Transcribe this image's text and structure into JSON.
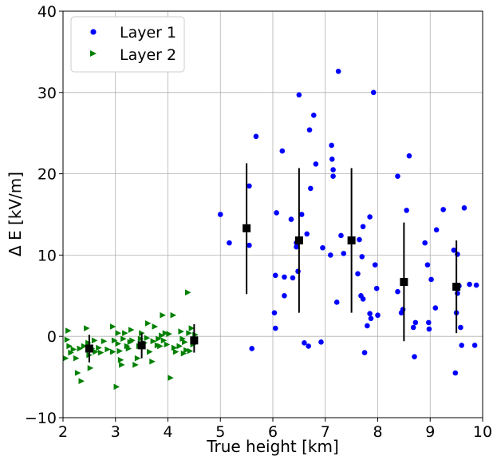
{
  "chart_data": {
    "type": "scatter",
    "title": "",
    "xlabel": "True height [km]",
    "ylabel": "Δ E [kV/m]",
    "xlim": [
      2,
      10
    ],
    "ylim": [
      -10,
      40
    ],
    "xticks": [
      2,
      3,
      4,
      5,
      6,
      7,
      8,
      9,
      10
    ],
    "yticks": [
      -10,
      0,
      10,
      20,
      30,
      40
    ],
    "xtick_labels": [
      "2",
      "3",
      "4",
      "5",
      "6",
      "7",
      "8",
      "9",
      "10"
    ],
    "ytick_labels": [
      "−10",
      "0",
      "10",
      "20",
      "30",
      "40"
    ],
    "grid": true,
    "legend_position": "top-left",
    "series": [
      {
        "name": "Layer 1",
        "marker": "circle",
        "color": "#0000ff",
        "points": [
          [
            5.0,
            15.0
          ],
          [
            5.17,
            11.5
          ],
          [
            5.55,
            18.5
          ],
          [
            5.55,
            11.2
          ],
          [
            5.6,
            -1.5
          ],
          [
            5.68,
            24.6
          ],
          [
            6.03,
            2.9
          ],
          [
            6.05,
            1.0
          ],
          [
            6.05,
            7.5
          ],
          [
            6.07,
            15.2
          ],
          [
            6.18,
            22.8
          ],
          [
            6.22,
            5.0
          ],
          [
            6.22,
            7.3
          ],
          [
            6.35,
            14.4
          ],
          [
            6.38,
            7.2
          ],
          [
            6.45,
            11.5
          ],
          [
            6.45,
            11.0
          ],
          [
            6.48,
            8.0
          ],
          [
            6.5,
            29.7
          ],
          [
            6.55,
            15.0
          ],
          [
            6.6,
            -0.8
          ],
          [
            6.65,
            12.6
          ],
          [
            6.68,
            -1.2
          ],
          [
            6.7,
            25.4
          ],
          [
            6.72,
            18.2
          ],
          [
            6.78,
            27.2
          ],
          [
            6.82,
            21.2
          ],
          [
            6.92,
            -0.7
          ],
          [
            6.95,
            10.9
          ],
          [
            7.1,
            10.0
          ],
          [
            7.12,
            23.5
          ],
          [
            7.13,
            21.8
          ],
          [
            7.15,
            20.5
          ],
          [
            7.15,
            19.7
          ],
          [
            7.22,
            4.2
          ],
          [
            7.25,
            32.6
          ],
          [
            7.3,
            12.4
          ],
          [
            7.35,
            10.2
          ],
          [
            7.62,
            7.7
          ],
          [
            7.65,
            11.9
          ],
          [
            7.68,
            5.0
          ],
          [
            7.7,
            9.8
          ],
          [
            7.72,
            4.6
          ],
          [
            7.72,
            13.5
          ],
          [
            7.75,
            -2.0
          ],
          [
            7.8,
            1.3
          ],
          [
            7.85,
            2.8
          ],
          [
            7.85,
            14.7
          ],
          [
            7.87,
            2.2
          ],
          [
            7.92,
            30.0
          ],
          [
            7.95,
            8.8
          ],
          [
            7.98,
            5.9
          ],
          [
            8.0,
            2.6
          ],
          [
            8.38,
            19.7
          ],
          [
            8.38,
            5.5
          ],
          [
            8.45,
            2.9
          ],
          [
            8.48,
            3.3
          ],
          [
            8.55,
            15.5
          ],
          [
            8.6,
            22.2
          ],
          [
            8.68,
            1.1
          ],
          [
            8.7,
            -2.5
          ],
          [
            8.72,
            1.7
          ],
          [
            8.9,
            11.5
          ],
          [
            8.95,
            8.8
          ],
          [
            8.97,
            1.7
          ],
          [
            8.98,
            0.9
          ],
          [
            9.02,
            7.0
          ],
          [
            9.1,
            3.5
          ],
          [
            9.12,
            13.1
          ],
          [
            9.25,
            15.6
          ],
          [
            9.45,
            10.6
          ],
          [
            9.48,
            -4.5
          ],
          [
            9.5,
            2.9
          ],
          [
            9.52,
            10.1
          ],
          [
            9.52,
            5.3
          ],
          [
            9.55,
            6.2
          ],
          [
            9.58,
            1.1
          ],
          [
            9.6,
            -1.1
          ],
          [
            9.65,
            15.8
          ],
          [
            9.75,
            6.4
          ],
          [
            9.85,
            -1.1
          ],
          [
            9.88,
            6.3
          ]
        ]
      },
      {
        "name": "Layer 2",
        "marker": "triangle-right",
        "color": "#008000",
        "points": [
          [
            2.05,
            -2.7
          ],
          [
            2.08,
            -0.4
          ],
          [
            2.1,
            0.7
          ],
          [
            2.12,
            -1.2
          ],
          [
            2.15,
            -2.0
          ],
          [
            2.2,
            -1.6
          ],
          [
            2.25,
            -2.7
          ],
          [
            2.28,
            -4.5
          ],
          [
            2.32,
            -1.5
          ],
          [
            2.35,
            -5.5
          ],
          [
            2.4,
            -1.2
          ],
          [
            2.45,
            1.0
          ],
          [
            2.48,
            -0.8
          ],
          [
            2.5,
            -2.3
          ],
          [
            2.52,
            -3.9
          ],
          [
            2.55,
            -1.5
          ],
          [
            2.6,
            -0.5
          ],
          [
            2.62,
            -1.9
          ],
          [
            2.68,
            -1.4
          ],
          [
            2.72,
            -2.0
          ],
          [
            2.78,
            -0.6
          ],
          [
            2.85,
            -1.6
          ],
          [
            2.95,
            -1.9
          ],
          [
            2.95,
            1.2
          ],
          [
            2.98,
            -0.5
          ],
          [
            3.02,
            -6.2
          ],
          [
            3.05,
            0.4
          ],
          [
            3.05,
            -0.9
          ],
          [
            3.08,
            -1.8
          ],
          [
            3.1,
            -2.9
          ],
          [
            3.12,
            -3.5
          ],
          [
            3.15,
            -0.3
          ],
          [
            3.18,
            0.4
          ],
          [
            3.22,
            -1.2
          ],
          [
            3.25,
            -1.5
          ],
          [
            3.28,
            -0.7
          ],
          [
            3.3,
            0.8
          ],
          [
            3.32,
            -0.5
          ],
          [
            3.38,
            -3.5
          ],
          [
            3.42,
            -2.7
          ],
          [
            3.45,
            -1.2
          ],
          [
            3.48,
            -0.3
          ],
          [
            3.5,
            0.4
          ],
          [
            3.55,
            -0.8
          ],
          [
            3.6,
            -0.2
          ],
          [
            3.62,
            1.6
          ],
          [
            3.65,
            -1.9
          ],
          [
            3.7,
            -3.1
          ],
          [
            3.72,
            -0.6
          ],
          [
            3.75,
            1.2
          ],
          [
            3.8,
            -1.1
          ],
          [
            3.82,
            -0.3
          ],
          [
            3.85,
            -1.2
          ],
          [
            3.88,
            0.1
          ],
          [
            3.9,
            2.6
          ],
          [
            3.92,
            -0.5
          ],
          [
            3.95,
            0.4
          ],
          [
            3.98,
            -1.0
          ],
          [
            4.02,
            0.3
          ],
          [
            4.05,
            -5.1
          ],
          [
            4.1,
            2.6
          ],
          [
            4.12,
            -1.4
          ],
          [
            4.15,
            -1.9
          ],
          [
            4.22,
            -1.2
          ],
          [
            4.25,
            0.6
          ],
          [
            4.28,
            -0.3
          ],
          [
            4.3,
            -2.1
          ],
          [
            4.32,
            -0.7
          ],
          [
            4.35,
            -1.7
          ],
          [
            4.38,
            5.4
          ],
          [
            4.4,
            0.4
          ],
          [
            4.42,
            -1.8
          ],
          [
            4.45,
            1.0
          ],
          [
            4.48,
            -1.0
          ],
          [
            4.5,
            -0.4
          ],
          [
            4.52,
            0.2
          ]
        ]
      },
      {
        "marker": "square",
        "color": "#000000",
        "points": [
          [
            2.5,
            -1.5
          ],
          [
            3.5,
            -1.1
          ],
          [
            4.5,
            -0.5
          ],
          [
            5.5,
            13.3
          ],
          [
            6.5,
            11.8
          ],
          [
            7.5,
            11.8
          ],
          [
            8.5,
            6.7
          ],
          [
            9.5,
            6.1
          ]
        ],
        "error_lower": [
          -3.2,
          -2.7,
          -2.0,
          5.2,
          2.9,
          2.9,
          -0.6,
          0.4
        ],
        "error_upper": [
          0.2,
          0.4,
          1.5,
          21.3,
          20.7,
          20.7,
          14.0,
          11.8
        ]
      }
    ]
  }
}
